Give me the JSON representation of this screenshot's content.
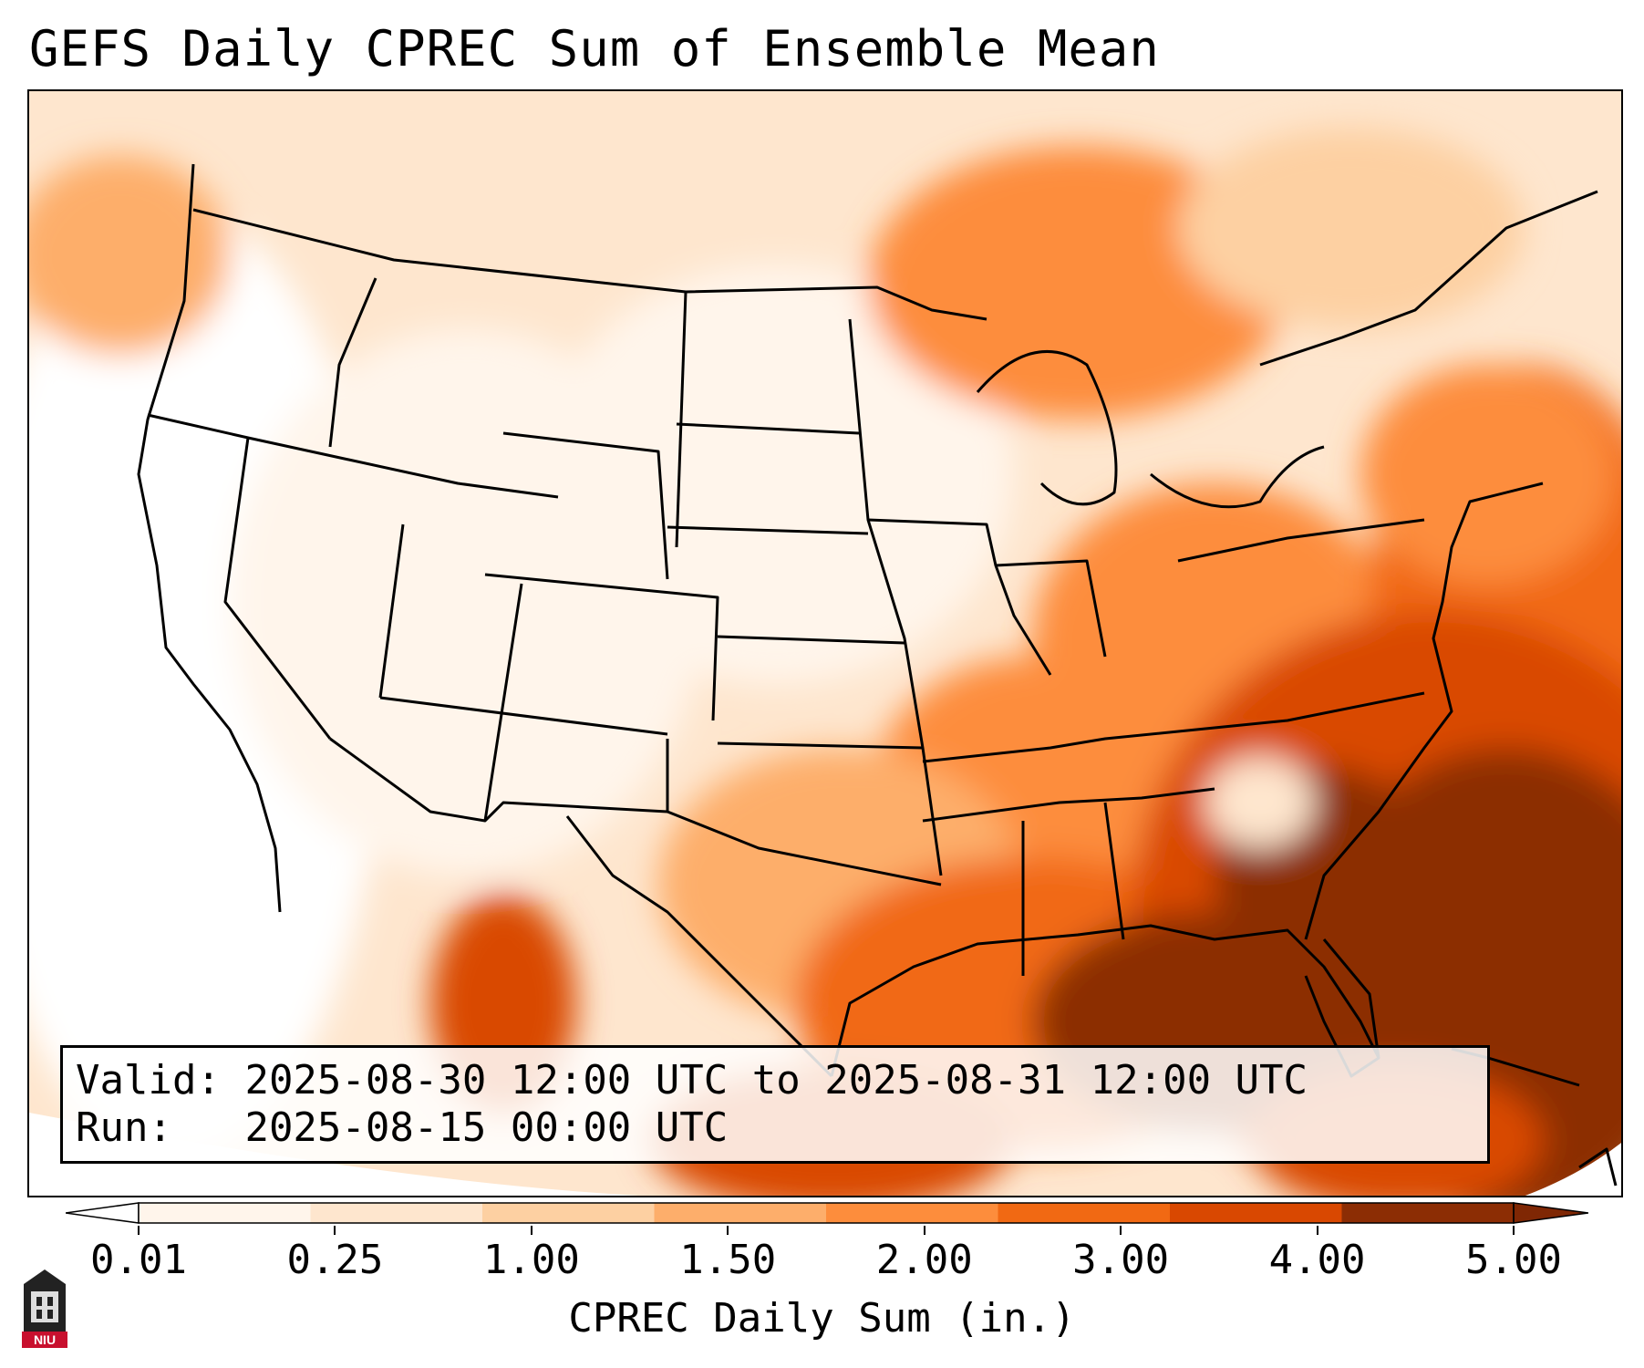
{
  "title": "GEFS Daily CPREC Sum of Ensemble Mean",
  "info": {
    "valid_label": "Valid:",
    "valid_value": "2025-08-30 12:00 UTC to 2025-08-31 12:00 UTC",
    "run_label": "Run:",
    "run_value": "2025-08-15 00:00 UTC"
  },
  "colorbar": {
    "label": "CPREC Daily Sum (in.)",
    "ticks": [
      "0.01",
      "0.25",
      "1.00",
      "1.50",
      "2.00",
      "3.00",
      "4.00",
      "5.00"
    ],
    "colors": [
      "#fff5eb",
      "#fee6ce",
      "#fdd0a2",
      "#fdae6b",
      "#fd8d3c",
      "#f16913",
      "#d94801",
      "#8c2d04"
    ],
    "under_color": "#ffffff",
    "over_color": "#7f2704"
  },
  "map": {
    "region": "Continental United States",
    "map_colors": {
      "high": "#8c2d04",
      "med_high": "#d94801",
      "med": "#f16913",
      "low_med": "#fd8d3c",
      "low": "#fdd0a2",
      "very_low": "#fff5eb"
    }
  },
  "logo": {
    "text": "NIU"
  }
}
